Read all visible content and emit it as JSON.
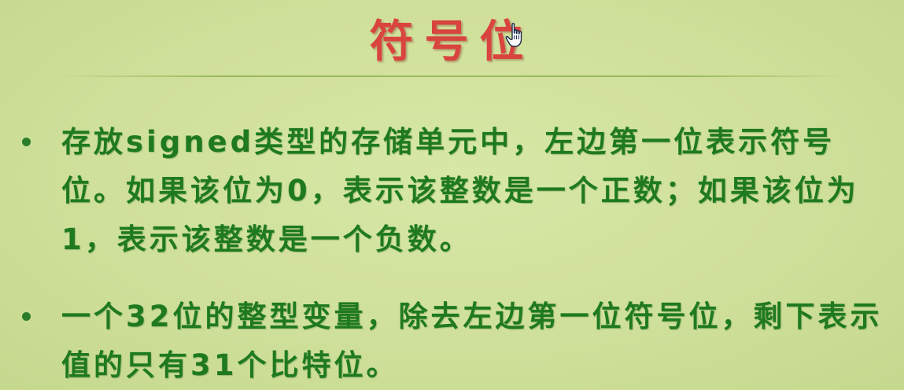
{
  "slide": {
    "title": "符号位",
    "bullets": [
      {
        "text": "存放signed类型的存储单元中，左边第一位表示符号位。如果该位为0，表示该整数是一个正数；如果该位为1，表示该整数是一个负数。"
      },
      {
        "text": "一个32位的整型变量，除去左边第一位符号位，剩下表示值的只有31个比特位。"
      }
    ]
  },
  "colors": {
    "background": "#d2e39f",
    "title": "#d9443f",
    "body_text": "#1f7a1f"
  },
  "icons": {
    "cursor": "hand-pointer-icon"
  }
}
